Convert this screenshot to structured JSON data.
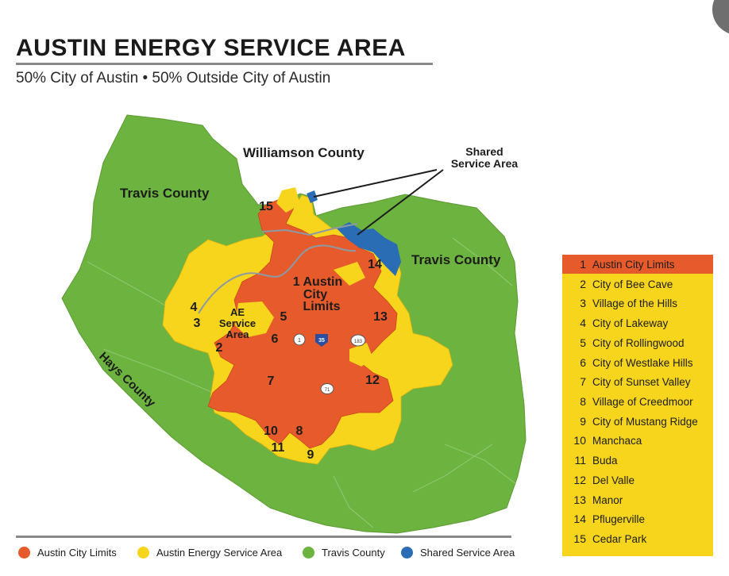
{
  "title": "AUSTIN ENERGY SERVICE AREA",
  "subtitle": "50% City of Austin • 50% Outside City of Austin",
  "colors": {
    "austin_city_limits": "#e65a2b",
    "ae_service_area": "#f7d51c",
    "travis_county": "#6cb33f",
    "shared_service_area": "#2a6db5"
  },
  "map": {
    "labels": {
      "williamson": "Williamson County",
      "travis_nw": "Travis County",
      "travis_e": "Travis County",
      "hays": "Hays County",
      "shared_line1": "Shared",
      "shared_line2": "Service Area",
      "ae_line1": "AE",
      "ae_line2": "Service",
      "ae_line3": "Area",
      "acl_line1": "1 Austin",
      "acl_line2": "City",
      "acl_line3": "Limits"
    },
    "numbers": {
      "n2": "2",
      "n3": "3",
      "n4": "4",
      "n5": "5",
      "n6": "6",
      "n7": "7",
      "n8": "8",
      "n9": "9",
      "n10": "10",
      "n11": "11",
      "n12": "12",
      "n13": "13",
      "n14": "14",
      "n15": "15"
    },
    "highways": {
      "h1": "1",
      "h35": "35",
      "h183": "183",
      "h71": "71"
    }
  },
  "legend_list": [
    {
      "num": "1",
      "label": "Austin City Limits"
    },
    {
      "num": "2",
      "label": "City of Bee Cave"
    },
    {
      "num": "3",
      "label": "Village of the Hills"
    },
    {
      "num": "4",
      "label": "City of Lakeway"
    },
    {
      "num": "5",
      "label": "City of Rollingwood"
    },
    {
      "num": "6",
      "label": "City of Westlake Hills"
    },
    {
      "num": "7",
      "label": "City of Sunset Valley"
    },
    {
      "num": "8",
      "label": "Village of Creedmoor"
    },
    {
      "num": "9",
      "label": "City of Mustang Ridge"
    },
    {
      "num": "10",
      "label": "Manchaca"
    },
    {
      "num": "11",
      "label": "Buda"
    },
    {
      "num": "12",
      "label": "Del Valle"
    },
    {
      "num": "13",
      "label": "Manor"
    },
    {
      "num": "14",
      "label": "Pflugerville"
    },
    {
      "num": "15",
      "label": "Cedar Park"
    }
  ],
  "key": {
    "acl": "Austin City Limits",
    "ae": "Austin Energy Service Area",
    "travis": "Travis County",
    "shared": "Shared Service Area"
  }
}
